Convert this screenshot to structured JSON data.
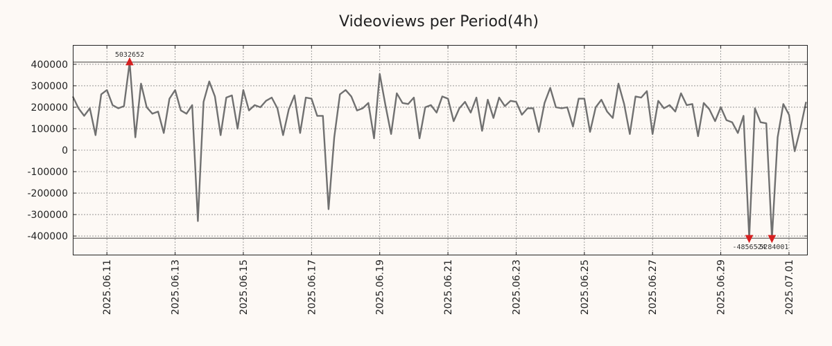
{
  "chart_data": {
    "type": "line",
    "title": "Videoviews per Period(4h)",
    "xlabel": "",
    "ylabel": "",
    "ylim": [
      -490000,
      490000
    ],
    "yticks": [
      400000,
      300000,
      200000,
      100000,
      0,
      -100000,
      -200000,
      -300000,
      -400000
    ],
    "ytick_labels": [
      "400000",
      "300000",
      "200000",
      "100000",
      "0",
      "-100000",
      "-200000",
      "-300000",
      "-400000"
    ],
    "xlim_days": [
      0,
      21.55
    ],
    "xticks": [
      {
        "day": 1,
        "label": "2025.06.11"
      },
      {
        "day": 3,
        "label": "2025.06.13"
      },
      {
        "day": 5,
        "label": "2025.06.15"
      },
      {
        "day": 7,
        "label": "2025.06.17"
      },
      {
        "day": 9,
        "label": "2025.06.19"
      },
      {
        "day": 11,
        "label": "2025.06.21"
      },
      {
        "day": 13,
        "label": "2025.06.23"
      },
      {
        "day": 15,
        "label": "2025.06.25"
      },
      {
        "day": 17,
        "label": "2025.06.27"
      },
      {
        "day": 19,
        "label": "2025.06.29"
      },
      {
        "day": 21,
        "label": "2025.07.01"
      }
    ],
    "hlines": [
      410000,
      -410000
    ],
    "grid": true,
    "series": [
      {
        "name": "Videoviews",
        "color": "#707070",
        "x_start_day": 0,
        "step_days": 0.16667,
        "values": [
          250000,
          195000,
          160000,
          195000,
          70000,
          260000,
          280000,
          210000,
          195000,
          205000,
          410000,
          60000,
          310000,
          200000,
          170000,
          180000,
          80000,
          240000,
          280000,
          185000,
          170000,
          210000,
          -330000,
          225000,
          320000,
          250000,
          70000,
          245000,
          255000,
          100000,
          280000,
          185000,
          210000,
          200000,
          230000,
          245000,
          195000,
          70000,
          190000,
          255000,
          80000,
          245000,
          240000,
          160000,
          160000,
          -275000,
          60000,
          260000,
          280000,
          250000,
          185000,
          195000,
          220000,
          55000,
          355000,
          210000,
          75000,
          265000,
          220000,
          215000,
          245000,
          55000,
          200000,
          210000,
          175000,
          250000,
          240000,
          135000,
          195000,
          225000,
          175000,
          245000,
          90000,
          235000,
          150000,
          245000,
          205000,
          230000,
          225000,
          165000,
          195000,
          195000,
          85000,
          220000,
          290000,
          200000,
          195000,
          200000,
          110000,
          240000,
          240000,
          85000,
          200000,
          235000,
          180000,
          150000,
          310000,
          215000,
          75000,
          250000,
          245000,
          275000,
          75000,
          230000,
          195000,
          210000,
          180000,
          265000,
          210000,
          215000,
          65000,
          220000,
          190000,
          135000,
          200000,
          140000,
          130000,
          80000,
          160000,
          -410000,
          195000,
          130000,
          125000,
          -410000,
          60000,
          215000,
          165000,
          -5000,
          100000,
          225000
        ]
      }
    ],
    "annotations": [
      {
        "label": "5032652",
        "day": 1.6667,
        "value": 410000,
        "marker": "up"
      },
      {
        "label": "-4856524",
        "day": 19.8333,
        "value": -410000,
        "marker": "down"
      },
      {
        "label": "-5284001",
        "day": 20.5,
        "value": -410000,
        "marker": "down"
      }
    ],
    "colors": {
      "background": "#fdf9f5",
      "line": "#707070",
      "marker": "#d62020",
      "grid": "#888888"
    }
  }
}
